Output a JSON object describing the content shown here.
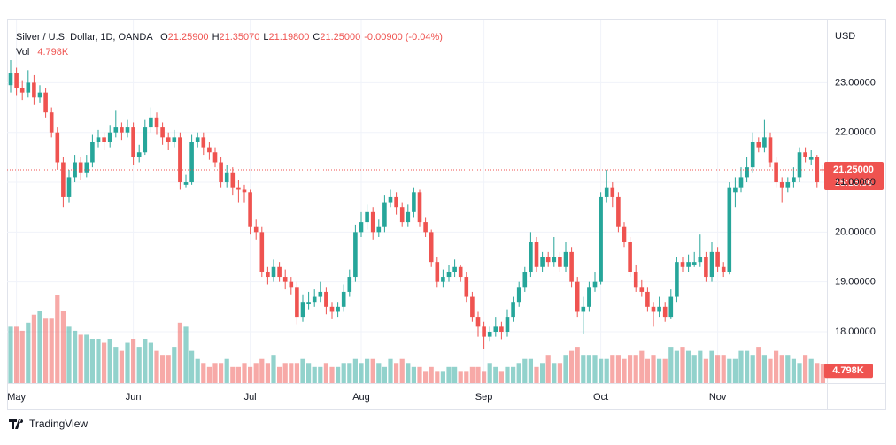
{
  "chart_data": {
    "type": "candlestick",
    "title": "Silver / U.S. Dollar, 1D, OANDA",
    "ohlc_legend": [
      {
        "key": "O",
        "value": "21.25900"
      },
      {
        "key": "H",
        "value": "21.35070"
      },
      {
        "key": "L",
        "value": "21.19800"
      },
      {
        "key": "C",
        "value": "21.25000"
      }
    ],
    "change": "-0.00900 (-0.04%)",
    "volume_label": "Vol",
    "volume_value_label": "4.798K",
    "currency": "USD",
    "last_price_label": "21.25000",
    "countdown": "15:16:36",
    "colors": {
      "up": "#26a69a",
      "down": "#ef5350"
    },
    "grid": true,
    "ylim": [
      16.97,
      24.25
    ],
    "yticks": [
      {
        "value": 18,
        "label": "18.00000"
      },
      {
        "value": 19,
        "label": "19.00000"
      },
      {
        "value": 20,
        "label": "20.00000"
      },
      {
        "value": 21,
        "label": "21.00000"
      },
      {
        "value": 22,
        "label": "22.00000"
      },
      {
        "value": 23,
        "label": "23.00000"
      }
    ],
    "categories": [
      null,
      "May",
      null,
      null,
      null,
      null,
      null,
      null,
      null,
      null,
      null,
      null,
      null,
      null,
      null,
      null,
      null,
      null,
      null,
      null,
      null,
      "Jun",
      null,
      null,
      null,
      null,
      null,
      null,
      null,
      null,
      null,
      null,
      null,
      null,
      null,
      null,
      null,
      null,
      null,
      null,
      null,
      "Jul",
      null,
      null,
      null,
      null,
      null,
      null,
      null,
      null,
      null,
      null,
      null,
      null,
      null,
      null,
      null,
      null,
      null,
      null,
      "Aug",
      null,
      null,
      null,
      null,
      null,
      null,
      null,
      null,
      null,
      null,
      null,
      null,
      null,
      null,
      null,
      null,
      null,
      null,
      null,
      null,
      "Sep",
      null,
      null,
      null,
      null,
      null,
      null,
      null,
      null,
      null,
      null,
      null,
      null,
      null,
      null,
      null,
      null,
      null,
      null,
      null,
      "Oct",
      null,
      null,
      null,
      null,
      null,
      null,
      null,
      null,
      null,
      null,
      null,
      null,
      null,
      null,
      null,
      null,
      null,
      null,
      null,
      "Nov",
      null,
      null,
      null,
      null,
      null,
      null,
      null,
      null,
      null,
      null,
      null,
      null,
      null,
      null,
      null,
      null,
      null,
      null
    ],
    "open": [
      22.95,
      23.2,
      22.9,
      22.8,
      23.0,
      22.7,
      22.8,
      22.4,
      22.0,
      21.4,
      20.7,
      21.1,
      21.4,
      21.2,
      21.4,
      21.8,
      21.9,
      21.8,
      22.0,
      22.1,
      22.0,
      22.1,
      21.5,
      21.6,
      22.1,
      22.3,
      22.1,
      21.9,
      21.8,
      21.9,
      20.95,
      21.0,
      21.8,
      21.9,
      21.7,
      21.6,
      21.4,
      21.0,
      21.2,
      20.9,
      20.85,
      20.8,
      20.1,
      20.0,
      19.2,
      19.1,
      19.3,
      19.1,
      19.0,
      18.9,
      18.3,
      18.55,
      18.6,
      18.7,
      18.8,
      18.5,
      18.4,
      18.5,
      18.8,
      19.1,
      20.0,
      20.2,
      20.4,
      20.0,
      20.1,
      20.6,
      20.7,
      20.5,
      20.2,
      20.4,
      20.8,
      20.2,
      20.0,
      19.4,
      19.0,
      19.1,
      19.2,
      19.3,
      19.1,
      18.7,
      18.3,
      18.1,
      17.9,
      18.0,
      18.1,
      18.0,
      18.3,
      18.6,
      18.9,
      19.2,
      19.8,
      19.3,
      19.5,
      19.4,
      19.5,
      19.3,
      19.6,
      19.0,
      18.4,
      18.5,
      18.9,
      19.0,
      20.7,
      20.9,
      20.7,
      20.1,
      19.8,
      19.2,
      18.9,
      18.8,
      18.5,
      18.4,
      18.5,
      18.3,
      18.7,
      19.4,
      19.3,
      19.35,
      19.4,
      19.5,
      19.1,
      19.6,
      19.3,
      19.2,
      20.8,
      20.9,
      21.1,
      21.3,
      21.8,
      21.7,
      21.9,
      21.4,
      21.0,
      20.9,
      21.0,
      21.1,
      21.6,
      21.45,
      21.5,
      21.259
    ],
    "high": [
      23.45,
      23.3,
      23.05,
      23.25,
      23.15,
      22.95,
      22.9,
      22.5,
      22.1,
      21.5,
      21.25,
      21.55,
      21.5,
      21.55,
      21.95,
      22.05,
      22.0,
      22.15,
      22.45,
      22.2,
      22.25,
      22.2,
      21.75,
      22.25,
      22.5,
      22.4,
      22.2,
      22.0,
      22.05,
      22.0,
      21.15,
      21.95,
      22.0,
      22.0,
      21.8,
      21.7,
      21.5,
      21.35,
      21.3,
      21.05,
      20.95,
      20.85,
      20.25,
      20.1,
      19.3,
      19.45,
      19.4,
      19.25,
      19.1,
      19.0,
      18.75,
      18.8,
      18.85,
      19.0,
      18.9,
      18.6,
      18.6,
      18.95,
      19.25,
      20.15,
      20.4,
      20.55,
      20.5,
      20.25,
      20.75,
      20.85,
      20.8,
      20.6,
      20.55,
      20.9,
      20.85,
      20.3,
      20.05,
      19.5,
      19.25,
      19.35,
      19.45,
      19.35,
      19.2,
      18.8,
      18.4,
      18.2,
      18.1,
      18.3,
      18.2,
      18.45,
      18.7,
      19.0,
      19.3,
      20.0,
      19.9,
      19.6,
      19.6,
      19.9,
      19.6,
      19.8,
      19.7,
      19.1,
      18.7,
      19.0,
      19.2,
      20.8,
      21.25,
      21.0,
      20.8,
      20.2,
      19.9,
      19.35,
      19.05,
      18.9,
      18.6,
      18.7,
      18.6,
      18.85,
      19.5,
      19.5,
      19.55,
      19.6,
      19.95,
      19.6,
      19.8,
      19.7,
      19.4,
      21.0,
      21.1,
      21.3,
      21.5,
      22.0,
      21.9,
      22.25,
      22.0,
      21.5,
      21.1,
      21.1,
      21.3,
      21.7,
      21.7,
      21.65,
      21.55,
      21.3507
    ],
    "low": [
      22.8,
      22.75,
      22.65,
      22.7,
      22.55,
      22.6,
      22.3,
      21.9,
      21.25,
      20.5,
      20.6,
      21.0,
      21.05,
      21.1,
      21.3,
      21.7,
      21.65,
      21.7,
      21.9,
      21.85,
      21.9,
      21.35,
      21.4,
      21.55,
      22.0,
      21.95,
      21.75,
      21.65,
      21.7,
      20.85,
      20.9,
      20.95,
      21.7,
      21.55,
      21.45,
      21.3,
      20.9,
      20.9,
      20.75,
      20.6,
      20.6,
      19.95,
      19.85,
      19.1,
      18.95,
      19.0,
      19.0,
      18.85,
      18.75,
      18.15,
      18.2,
      18.45,
      18.5,
      18.6,
      18.35,
      18.25,
      18.3,
      18.4,
      18.7,
      19.0,
      19.9,
      20.05,
      19.85,
      19.9,
      20.0,
      20.5,
      20.35,
      20.1,
      20.1,
      20.3,
      20.1,
      19.9,
      19.3,
      18.9,
      18.9,
      19.0,
      19.1,
      19.0,
      18.6,
      18.2,
      17.9,
      17.65,
      17.8,
      17.9,
      17.85,
      17.9,
      18.2,
      18.5,
      18.8,
      19.1,
      19.2,
      19.2,
      19.3,
      19.3,
      19.2,
      19.2,
      18.9,
      18.3,
      17.95,
      18.4,
      18.8,
      18.95,
      20.6,
      20.5,
      20.0,
      19.7,
      19.1,
      18.8,
      18.7,
      18.4,
      18.1,
      18.3,
      18.2,
      18.25,
      18.6,
      19.2,
      19.2,
      19.3,
      19.3,
      19.0,
      19.0,
      19.2,
      19.1,
      19.15,
      20.5,
      20.8,
      21.0,
      21.2,
      21.6,
      21.6,
      21.3,
      20.9,
      20.6,
      20.8,
      20.9,
      21.0,
      21.4,
      21.35,
      20.9,
      21.198
    ],
    "close": [
      23.2,
      22.9,
      22.8,
      23.0,
      22.7,
      22.8,
      22.4,
      22.0,
      21.4,
      20.7,
      21.1,
      21.4,
      21.2,
      21.4,
      21.8,
      21.9,
      21.8,
      22.0,
      22.1,
      22.0,
      22.1,
      21.5,
      21.6,
      22.1,
      22.3,
      22.1,
      21.9,
      21.8,
      21.9,
      21.0,
      21.0,
      21.8,
      21.9,
      21.7,
      21.6,
      21.4,
      21.0,
      21.2,
      20.9,
      20.85,
      20.8,
      20.1,
      20.0,
      19.2,
      19.1,
      19.3,
      19.1,
      19.0,
      18.9,
      18.3,
      18.6,
      18.6,
      18.7,
      18.8,
      18.5,
      18.4,
      18.5,
      18.8,
      19.1,
      20.0,
      20.2,
      20.4,
      20.0,
      20.1,
      20.6,
      20.7,
      20.5,
      20.2,
      20.4,
      20.8,
      20.2,
      20.0,
      19.4,
      19.0,
      19.1,
      19.2,
      19.3,
      19.1,
      18.7,
      18.3,
      18.1,
      17.9,
      18.0,
      18.1,
      18.0,
      18.3,
      18.6,
      18.9,
      19.2,
      19.8,
      19.3,
      19.5,
      19.4,
      19.5,
      19.3,
      19.6,
      19.0,
      18.4,
      18.5,
      18.9,
      19.0,
      20.7,
      20.9,
      20.7,
      20.1,
      19.8,
      19.2,
      18.9,
      18.8,
      18.5,
      18.4,
      18.5,
      18.3,
      18.7,
      19.4,
      19.3,
      19.4,
      19.4,
      19.5,
      19.1,
      19.6,
      19.3,
      19.2,
      20.9,
      20.9,
      21.1,
      21.3,
      21.8,
      21.7,
      21.9,
      21.4,
      21.0,
      20.9,
      21.0,
      21.1,
      21.6,
      21.5,
      21.5,
      21.0,
      21.25
    ],
    "volume": [
      14,
      14,
      13,
      15,
      17,
      18,
      16,
      16,
      22,
      18,
      14,
      13,
      12,
      12,
      11,
      11,
      10,
      11,
      9,
      8,
      10,
      11,
      9,
      11,
      10,
      8,
      7,
      7,
      9,
      15,
      14,
      8,
      6,
      5,
      4,
      5,
      5,
      6,
      4,
      4,
      5,
      4,
      5,
      6,
      5,
      7,
      4,
      5,
      5,
      5,
      6,
      5,
      4,
      4,
      5,
      4,
      4,
      5,
      5,
      6,
      5,
      6,
      6,
      5,
      4,
      6,
      5,
      6,
      5,
      4,
      4,
      3,
      4,
      3,
      3,
      4,
      4,
      3,
      3,
      4,
      4,
      3,
      5,
      4,
      3,
      4,
      4,
      5,
      6,
      6,
      4,
      5,
      7,
      5,
      5,
      7,
      8,
      9,
      7,
      7,
      7,
      6,
      6,
      7,
      7,
      6,
      7,
      7,
      8,
      6,
      7,
      6,
      6,
      9,
      8,
      9,
      8,
      7,
      8,
      6,
      8,
      7,
      7,
      6,
      6,
      8,
      8,
      7,
      9,
      7,
      6,
      8,
      7,
      7,
      6,
      5,
      7,
      6,
      5,
      4.798
    ]
  },
  "footer": {
    "brand": "TradingView"
  }
}
